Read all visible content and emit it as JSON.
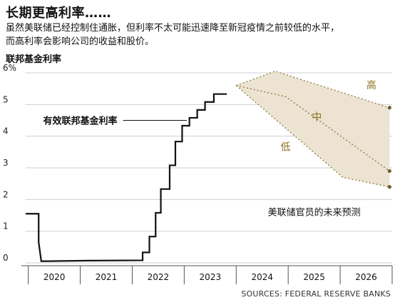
{
  "title": "长期更高利率……",
  "subtitle_lines": [
    "虽然美联储已经控制住通胀，但利率不太可能迅速降至新冠疫情之前较低的水平，",
    "而高利率会影响公司的收益和股价。"
  ],
  "source": "SOURCES: FEDERAL RESERVE BANKS",
  "chart_data": {
    "type": "line",
    "ylabel": "联邦基金利率",
    "ylim": [
      0,
      6
    ],
    "yticks": [
      0,
      1,
      2,
      3,
      4,
      5,
      6
    ],
    "ytick_labels": [
      "0",
      "1",
      "2",
      "3",
      "4",
      "5",
      "6%"
    ],
    "xlim": [
      2019.95,
      2027.0
    ],
    "xtick_labels": [
      "2020",
      "2021",
      "2022",
      "2023",
      "2024",
      "2025",
      "2026"
    ],
    "grid": true,
    "colors": {
      "line": "#111111",
      "projection_fill": "#ece3d2",
      "projection_line": "#8a7a3e",
      "annotation_text": "#8a6d1a",
      "grid": "#cfcfcf",
      "axis": "#555555"
    },
    "series": [
      {
        "name": "有效联邦基金利率",
        "points": [
          [
            2019.95,
            1.55
          ],
          [
            2020.2,
            1.55
          ],
          [
            2020.2,
            0.65
          ],
          [
            2020.25,
            0.05
          ],
          [
            2021.15,
            0.07
          ],
          [
            2022.2,
            0.08
          ],
          [
            2022.2,
            0.33
          ],
          [
            2022.33,
            0.33
          ],
          [
            2022.33,
            0.83
          ],
          [
            2022.45,
            0.83
          ],
          [
            2022.45,
            1.58
          ],
          [
            2022.55,
            1.58
          ],
          [
            2022.55,
            2.33
          ],
          [
            2022.72,
            2.33
          ],
          [
            2022.72,
            3.08
          ],
          [
            2022.83,
            3.08
          ],
          [
            2022.83,
            3.83
          ],
          [
            2022.96,
            3.83
          ],
          [
            2022.96,
            4.33
          ],
          [
            2023.1,
            4.33
          ],
          [
            2023.1,
            4.58
          ],
          [
            2023.25,
            4.58
          ],
          [
            2023.25,
            4.83
          ],
          [
            2023.4,
            4.83
          ],
          [
            2023.4,
            5.08
          ],
          [
            2023.57,
            5.08
          ],
          [
            2023.57,
            5.33
          ],
          [
            2023.82,
            5.33
          ]
        ]
      }
    ],
    "projections": [
      {
        "label": "高",
        "points": [
          [
            2024.0,
            5.6
          ],
          [
            2024.75,
            6.05
          ],
          [
            2026.95,
            4.9
          ]
        ],
        "label_at": [
          2026.6,
          5.5
        ]
      },
      {
        "label": "中",
        "points": [
          [
            2024.0,
            5.6
          ],
          [
            2024.95,
            5.25
          ],
          [
            2026.95,
            2.9
          ]
        ],
        "label_at": [
          2025.55,
          4.5
        ]
      },
      {
        "label": "低",
        "points": [
          [
            2024.0,
            5.6
          ],
          [
            2026.05,
            2.7
          ],
          [
            2026.95,
            2.4
          ]
        ],
        "label_at": [
          2024.95,
          3.55
        ]
      }
    ],
    "annotations": [
      {
        "text": "有效联邦基金利率",
        "at": [
          2021.0,
          4.5
        ],
        "leader_to": [
          2023.05,
          4.5
        ]
      },
      {
        "text": "美联储官员的未来预测",
        "at": [
          2025.5,
          1.5
        ]
      }
    ]
  }
}
